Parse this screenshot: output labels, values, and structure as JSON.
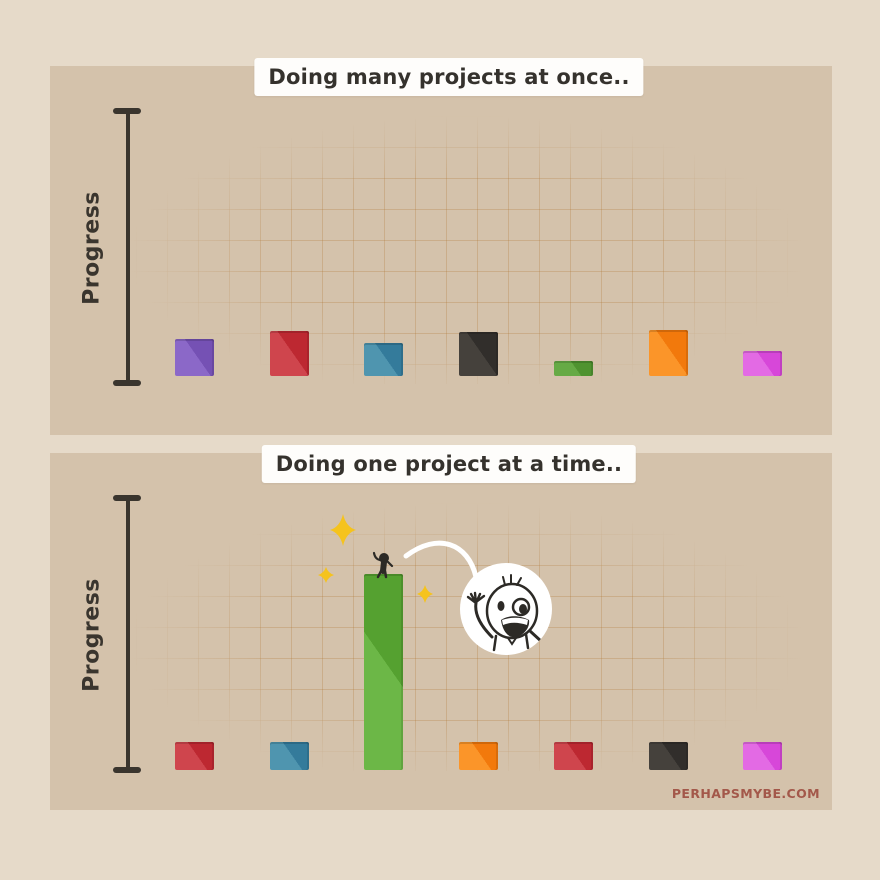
{
  "art": {
    "background_color": "#e6dac9",
    "panel_color": "#d4c2ab",
    "grid_line_color": "rgba(176,118,52,0.28)",
    "axis_color": "#3a352e",
    "title_ink_color": "#35322d",
    "title_box_color": "#fefdfb",
    "sparkle_color": "#f5c31d",
    "ink_color": "#2c2a26",
    "swoosh_color": "#ffffff"
  },
  "watermark": {
    "text": "PERHAPSMYBE.COM",
    "color": "#a3584a"
  },
  "panels": [
    {
      "title": "Doing many projects at once..",
      "axis_label": "Progress",
      "bars": [
        {
          "name": "purple",
          "progress_pct": 14,
          "color": "#7551b4",
          "highlight": "#8b68c8"
        },
        {
          "name": "red",
          "progress_pct": 17,
          "color": "#bd2831",
          "highlight": "#cf454d"
        },
        {
          "name": "teal",
          "progress_pct": 12.5,
          "color": "#347b9b",
          "highlight": "#4f95af"
        },
        {
          "name": "black",
          "progress_pct": 16.5,
          "color": "#312e2b",
          "highlight": "#45413c"
        },
        {
          "name": "green",
          "progress_pct": 5.5,
          "color": "#4f9330",
          "highlight": "#66aa45"
        },
        {
          "name": "orange",
          "progress_pct": 17.5,
          "color": "#f2790c",
          "highlight": "#fb9529"
        },
        {
          "name": "magenta",
          "progress_pct": 9.5,
          "color": "#d747d9",
          "highlight": "#e36ae4"
        }
      ]
    },
    {
      "title": "Doing one project at a time..",
      "axis_label": "Progress",
      "bars": [
        {
          "name": "red",
          "progress_pct": 10.5,
          "color": "#bd2831",
          "highlight": "#cf454d"
        },
        {
          "name": "teal",
          "progress_pct": 10.5,
          "color": "#347b9b",
          "highlight": "#4f95af"
        },
        {
          "name": "green",
          "progress_pct": 74,
          "color": "#55a130",
          "highlight": "#6cb747"
        },
        {
          "name": "orange",
          "progress_pct": 10.5,
          "color": "#f2790c",
          "highlight": "#fb9529"
        },
        {
          "name": "red2",
          "progress_pct": 10.5,
          "color": "#bd2831",
          "highlight": "#cf454d"
        },
        {
          "name": "black",
          "progress_pct": 10.5,
          "color": "#312e2b",
          "highlight": "#45413c"
        },
        {
          "name": "magenta",
          "progress_pct": 10.5,
          "color": "#d747d9",
          "highlight": "#e36ae4"
        }
      ]
    }
  ],
  "chart_data": [
    {
      "type": "bar",
      "title": "Doing many projects at once..",
      "xlabel": "",
      "ylabel": "Progress",
      "categories": [
        "purple",
        "red",
        "teal",
        "black",
        "green",
        "orange",
        "magenta"
      ],
      "values": [
        14,
        17,
        12.5,
        16.5,
        5.5,
        17.5,
        9.5
      ],
      "ylim": [
        0,
        100
      ],
      "bar_colors": [
        "#7551b4",
        "#bd2831",
        "#347b9b",
        "#312e2b",
        "#4f9330",
        "#f2790c",
        "#d747d9"
      ],
      "grid": true,
      "legend_position": "none",
      "annotations": []
    },
    {
      "type": "bar",
      "title": "Doing one project at a time..",
      "xlabel": "",
      "ylabel": "Progress",
      "categories": [
        "red",
        "teal",
        "green",
        "orange",
        "red",
        "black",
        "magenta"
      ],
      "values": [
        10.5,
        10.5,
        74,
        10.5,
        10.5,
        10.5,
        10.5
      ],
      "ylim": [
        0,
        100
      ],
      "bar_colors": [
        "#bd2831",
        "#347b9b",
        "#55a130",
        "#f2790c",
        "#bd2831",
        "#312e2b",
        "#d747d9"
      ],
      "grid": true,
      "legend_position": "none",
      "annotations": [
        "sparkles and a tiny stick figure celebrating on top of the tall green bar",
        "white magnifier circle showing the happy waving character close-up"
      ]
    }
  ]
}
